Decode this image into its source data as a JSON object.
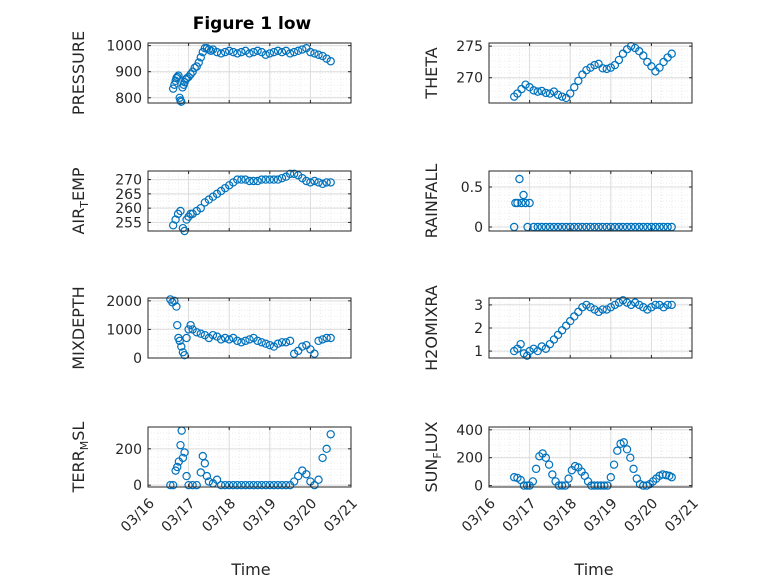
{
  "figure": {
    "title": "Figure 1 low",
    "xlabel": "Time"
  },
  "style": {
    "marker_color": "#0072bd",
    "axis_color": "#262626",
    "grid_color": "#dcdcdc",
    "background": "#ffffff"
  },
  "chart_data": [
    {
      "type": "scatter",
      "title": "Figure 1 low",
      "ylabel": "PRESSURE",
      "ylabel_html": "PRESSURE",
      "xlim": [
        0,
        5
      ],
      "ylim": [
        780,
        1010
      ],
      "yticks": [
        800,
        900,
        1000
      ],
      "xticks": [
        0,
        1,
        2,
        3,
        4,
        5
      ],
      "xticklabels": [
        "03/16",
        "03/17",
        "03/18",
        "03/19",
        "03/20",
        "03/21"
      ],
      "show_xticklabels": false,
      "grid": true,
      "marker": "open-circle",
      "x": [
        0.62,
        0.65,
        0.68,
        0.7,
        0.72,
        0.75,
        0.78,
        0.8,
        0.82,
        0.85,
        0.88,
        0.9,
        0.93,
        0.96,
        1.0,
        1.05,
        1.1,
        1.15,
        1.2,
        1.25,
        1.3,
        1.35,
        1.4,
        1.45,
        1.5,
        1.55,
        1.6,
        1.7,
        1.8,
        1.9,
        2.0,
        2.1,
        2.2,
        2.3,
        2.4,
        2.5,
        2.6,
        2.7,
        2.8,
        2.9,
        3.0,
        3.1,
        3.2,
        3.3,
        3.4,
        3.5,
        3.6,
        3.7,
        3.8,
        3.9,
        4.0,
        4.1,
        4.2,
        4.3,
        4.4,
        4.5
      ],
      "y": [
        835,
        850,
        865,
        875,
        880,
        885,
        800,
        790,
        785,
        840,
        850,
        860,
        870,
        875,
        880,
        890,
        900,
        915,
        920,
        935,
        955,
        975,
        990,
        990,
        985,
        980,
        985,
        975,
        970,
        975,
        980,
        975,
        970,
        975,
        980,
        970,
        975,
        980,
        975,
        965,
        970,
        975,
        980,
        975,
        980,
        970,
        975,
        980,
        985,
        990,
        975,
        970,
        965,
        960,
        950,
        940
      ]
    },
    {
      "type": "scatter",
      "ylabel": "THETA",
      "ylabel_html": "THETA",
      "xlim": [
        0,
        5
      ],
      "ylim": [
        266,
        275.5
      ],
      "yticks": [
        270,
        275
      ],
      "xticks": [
        0,
        1,
        2,
        3,
        4,
        5
      ],
      "xticklabels": [
        "03/16",
        "03/17",
        "03/18",
        "03/19",
        "03/20",
        "03/21"
      ],
      "show_xticklabels": false,
      "grid": true,
      "marker": "open-circle",
      "x": [
        0.62,
        0.7,
        0.8,
        0.9,
        1.0,
        1.1,
        1.2,
        1.3,
        1.4,
        1.5,
        1.6,
        1.7,
        1.8,
        1.9,
        2.0,
        2.1,
        2.2,
        2.3,
        2.4,
        2.5,
        2.6,
        2.7,
        2.8,
        2.9,
        3.0,
        3.1,
        3.2,
        3.3,
        3.4,
        3.5,
        3.6,
        3.7,
        3.8,
        3.9,
        4.0,
        4.1,
        4.2,
        4.3,
        4.4,
        4.5
      ],
      "y": [
        267.0,
        267.5,
        268.2,
        268.9,
        268.5,
        268.0,
        267.8,
        267.9,
        267.6,
        267.5,
        267.8,
        267.3,
        267.0,
        266.8,
        267.5,
        268.5,
        269.5,
        270.5,
        271.2,
        271.6,
        272.0,
        272.2,
        271.5,
        271.4,
        271.6,
        272.0,
        272.8,
        273.8,
        274.5,
        275.0,
        274.7,
        274.2,
        273.5,
        272.5,
        271.8,
        271.0,
        271.6,
        272.5,
        273.2,
        273.8
      ]
    },
    {
      "type": "scatter",
      "ylabel": "AIR_TEMP",
      "ylabel_html": "AIR<tspan baseline-shift=\"-4\" font-size=\"11\">T</tspan>EMP",
      "xlim": [
        0,
        5
      ],
      "ylim": [
        252,
        273
      ],
      "yticks": [
        255,
        260,
        265,
        270
      ],
      "xticks": [
        0,
        1,
        2,
        3,
        4,
        5
      ],
      "xticklabels": [
        "03/16",
        "03/17",
        "03/18",
        "03/19",
        "03/20",
        "03/21"
      ],
      "show_xticklabels": false,
      "grid": true,
      "marker": "open-circle",
      "x": [
        0.62,
        0.68,
        0.74,
        0.8,
        0.86,
        0.9,
        0.95,
        1.0,
        1.05,
        1.1,
        1.2,
        1.3,
        1.4,
        1.5,
        1.6,
        1.7,
        1.8,
        1.9,
        2.0,
        2.1,
        2.2,
        2.3,
        2.4,
        2.5,
        2.6,
        2.7,
        2.8,
        2.9,
        3.0,
        3.1,
        3.2,
        3.3,
        3.4,
        3.5,
        3.6,
        3.7,
        3.8,
        3.9,
        4.0,
        4.1,
        4.2,
        4.3,
        4.4,
        4.5
      ],
      "y": [
        254,
        256,
        258,
        259,
        253,
        252,
        256,
        257,
        258,
        258,
        259,
        260,
        262,
        263,
        264,
        265,
        266,
        267,
        268,
        269,
        270,
        270,
        270,
        269.5,
        269.5,
        269.5,
        270,
        270,
        270,
        270,
        270,
        270.5,
        271,
        272,
        272,
        271.5,
        270.5,
        269.5,
        269,
        269.5,
        269,
        268.5,
        269,
        269
      ]
    },
    {
      "type": "scatter",
      "ylabel": "RAINFALL",
      "ylabel_html": "RAINFALL",
      "xlim": [
        0,
        5
      ],
      "ylim": [
        -0.05,
        0.7
      ],
      "yticks": [
        0,
        0.5
      ],
      "yticklabels": [
        "0",
        "0.5"
      ],
      "xticks": [
        0,
        1,
        2,
        3,
        4,
        5
      ],
      "xticklabels": [
        "03/16",
        "03/17",
        "03/18",
        "03/19",
        "03/20",
        "03/21"
      ],
      "show_xticklabels": false,
      "grid": true,
      "marker": "open-circle",
      "x": [
        0.62,
        0.65,
        0.7,
        0.75,
        0.8,
        0.85,
        0.9,
        0.95,
        1.0,
        1.1,
        1.2,
        1.3,
        1.4,
        1.5,
        1.6,
        1.7,
        1.8,
        1.9,
        2.0,
        2.1,
        2.2,
        2.3,
        2.4,
        2.5,
        2.6,
        2.7,
        2.8,
        2.9,
        3.0,
        3.1,
        3.2,
        3.3,
        3.4,
        3.5,
        3.6,
        3.7,
        3.8,
        3.9,
        4.0,
        4.1,
        4.2,
        4.3,
        4.4,
        4.5
      ],
      "y": [
        0,
        0.3,
        0.3,
        0.6,
        0.3,
        0.4,
        0.3,
        0,
        0.3,
        0,
        0,
        0,
        0,
        0,
        0,
        0,
        0,
        0,
        0,
        0,
        0,
        0,
        0,
        0,
        0,
        0,
        0,
        0,
        0,
        0,
        0,
        0,
        0,
        0,
        0,
        0,
        0,
        0,
        0,
        0,
        0,
        0,
        0,
        0
      ]
    },
    {
      "type": "scatter",
      "ylabel": "MIXDEPTH",
      "ylabel_html": "MIXDEPTH",
      "xlim": [
        0,
        5
      ],
      "ylim": [
        0,
        2100
      ],
      "yticks": [
        0,
        1000,
        2000
      ],
      "xticks": [
        0,
        1,
        2,
        3,
        4,
        5
      ],
      "xticklabels": [
        "03/16",
        "03/17",
        "03/18",
        "03/19",
        "03/20",
        "03/21"
      ],
      "show_xticklabels": false,
      "grid": true,
      "marker": "open-circle",
      "x": [
        0.55,
        0.6,
        0.65,
        0.7,
        0.72,
        0.75,
        0.78,
        0.82,
        0.86,
        0.9,
        0.95,
        1.0,
        1.05,
        1.1,
        1.2,
        1.3,
        1.4,
        1.5,
        1.6,
        1.7,
        1.8,
        1.9,
        2.0,
        2.1,
        2.2,
        2.3,
        2.4,
        2.5,
        2.6,
        2.7,
        2.8,
        2.9,
        3.0,
        3.1,
        3.2,
        3.3,
        3.4,
        3.5,
        3.6,
        3.7,
        3.8,
        3.9,
        4.0,
        4.1,
        4.2,
        4.3,
        4.4,
        4.5
      ],
      "y": [
        2050,
        1950,
        2000,
        1800,
        1150,
        700,
        600,
        400,
        200,
        100,
        700,
        1000,
        1150,
        1000,
        900,
        850,
        800,
        700,
        800,
        750,
        650,
        700,
        650,
        700,
        600,
        550,
        600,
        650,
        700,
        600,
        550,
        500,
        450,
        400,
        500,
        550,
        550,
        600,
        150,
        250,
        400,
        450,
        300,
        150,
        600,
        650,
        700,
        700
      ]
    },
    {
      "type": "scatter",
      "ylabel": "H2OMIXRA",
      "ylabel_html": "H2OMIXRA",
      "xlim": [
        0,
        5
      ],
      "ylim": [
        0.7,
        3.3
      ],
      "yticks": [
        1,
        2,
        3
      ],
      "xticks": [
        0,
        1,
        2,
        3,
        4,
        5
      ],
      "xticklabels": [
        "03/16",
        "03/17",
        "03/18",
        "03/19",
        "03/20",
        "03/21"
      ],
      "show_xticklabels": false,
      "grid": true,
      "marker": "open-circle",
      "x": [
        0.62,
        0.7,
        0.78,
        0.86,
        0.94,
        1.0,
        1.1,
        1.2,
        1.3,
        1.4,
        1.5,
        1.6,
        1.7,
        1.8,
        1.9,
        2.0,
        2.1,
        2.2,
        2.3,
        2.4,
        2.5,
        2.6,
        2.7,
        2.8,
        2.9,
        3.0,
        3.1,
        3.2,
        3.3,
        3.4,
        3.5,
        3.6,
        3.7,
        3.8,
        3.9,
        4.0,
        4.1,
        4.2,
        4.3,
        4.4,
        4.5
      ],
      "y": [
        1.0,
        1.1,
        1.3,
        0.9,
        0.8,
        1.0,
        1.1,
        1.0,
        1.2,
        1.1,
        1.3,
        1.5,
        1.7,
        1.9,
        2.1,
        2.3,
        2.5,
        2.7,
        2.9,
        3.0,
        2.9,
        2.8,
        2.7,
        2.8,
        2.8,
        2.9,
        3.0,
        3.1,
        3.2,
        3.1,
        3.0,
        3.1,
        3.0,
        2.9,
        2.8,
        2.9,
        3.0,
        3.0,
        2.9,
        3.0,
        3.0
      ]
    },
    {
      "type": "scatter",
      "ylabel": "TERR_MSL",
      "ylabel_html": "TERR<tspan baseline-shift=\"-4\" font-size=\"11\">M</tspan>SL",
      "xlim": [
        0,
        5
      ],
      "ylim": [
        -10,
        320
      ],
      "yticks": [
        0,
        200
      ],
      "xticks": [
        0,
        1,
        2,
        3,
        4,
        5
      ],
      "xticklabels": [
        "03/16",
        "03/17",
        "03/18",
        "03/19",
        "03/20",
        "03/21"
      ],
      "show_xticklabels": true,
      "grid": true,
      "marker": "open-circle",
      "x": [
        0.55,
        0.62,
        0.68,
        0.72,
        0.76,
        0.8,
        0.83,
        0.86,
        0.9,
        0.95,
        1.0,
        1.1,
        1.2,
        1.3,
        1.35,
        1.4,
        1.45,
        1.5,
        1.6,
        1.7,
        1.8,
        1.9,
        2.0,
        2.1,
        2.2,
        2.3,
        2.4,
        2.5,
        2.6,
        2.7,
        2.8,
        2.9,
        3.0,
        3.1,
        3.2,
        3.3,
        3.4,
        3.5,
        3.6,
        3.7,
        3.8,
        3.9,
        4.0,
        4.1,
        4.2,
        4.3,
        4.4,
        4.5
      ],
      "y": [
        0,
        0,
        80,
        100,
        130,
        220,
        300,
        150,
        180,
        50,
        0,
        0,
        0,
        70,
        160,
        120,
        50,
        20,
        10,
        30,
        0,
        0,
        0,
        0,
        0,
        0,
        0,
        0,
        0,
        0,
        0,
        0,
        0,
        0,
        0,
        0,
        0,
        0,
        20,
        50,
        80,
        60,
        20,
        0,
        30,
        150,
        200,
        280
      ]
    },
    {
      "type": "scatter",
      "ylabel": "SUN_FLUX",
      "ylabel_html": "SUN<tspan baseline-shift=\"-4\" font-size=\"11\">F</tspan>LUX",
      "xlim": [
        0,
        5
      ],
      "ylim": [
        -10,
        420
      ],
      "yticks": [
        0,
        200,
        400
      ],
      "xticks": [
        0,
        1,
        2,
        3,
        4,
        5
      ],
      "xticklabels": [
        "03/16",
        "03/17",
        "03/18",
        "03/19",
        "03/20",
        "03/21"
      ],
      "show_xticklabels": true,
      "grid": true,
      "marker": "open-circle",
      "x": [
        0.62,
        0.7,
        0.78,
        0.86,
        0.94,
        1.0,
        1.08,
        1.16,
        1.24,
        1.32,
        1.4,
        1.48,
        1.56,
        1.64,
        1.72,
        1.8,
        1.88,
        1.96,
        2.04,
        2.12,
        2.2,
        2.28,
        2.36,
        2.44,
        2.52,
        2.6,
        2.68,
        2.76,
        2.84,
        2.92,
        3.0,
        3.08,
        3.16,
        3.24,
        3.32,
        3.4,
        3.48,
        3.56,
        3.64,
        3.72,
        3.8,
        3.88,
        3.96,
        4.04,
        4.12,
        4.2,
        4.28,
        4.36,
        4.44,
        4.5
      ],
      "y": [
        60,
        55,
        40,
        0,
        0,
        0,
        30,
        120,
        210,
        230,
        200,
        150,
        80,
        30,
        0,
        0,
        0,
        50,
        110,
        140,
        130,
        100,
        70,
        30,
        0,
        0,
        0,
        0,
        0,
        0,
        60,
        150,
        250,
        300,
        310,
        260,
        200,
        120,
        50,
        10,
        0,
        0,
        10,
        30,
        50,
        70,
        80,
        75,
        70,
        60
      ]
    }
  ]
}
